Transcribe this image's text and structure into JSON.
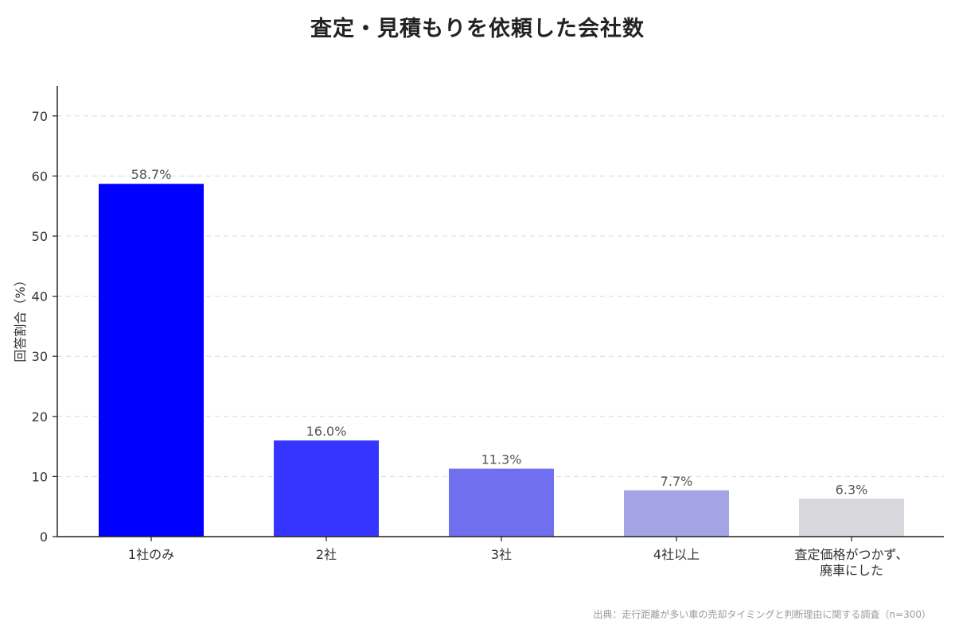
{
  "chart_data": {
    "type": "bar",
    "title": "査定・見積もりを依頼した会社数",
    "ylabel": "回答割合（%）",
    "xlabel": "",
    "ylim": [
      0,
      75
    ],
    "yticks": [
      0,
      10,
      20,
      30,
      40,
      50,
      60,
      70
    ],
    "grid": true,
    "categories": [
      [
        "1社のみ"
      ],
      [
        "2社"
      ],
      [
        "3社"
      ],
      [
        "4社以上"
      ],
      [
        "査定価格がつかず、",
        "廃車にした"
      ]
    ],
    "values": [
      58.7,
      16.0,
      11.3,
      7.7,
      6.3
    ],
    "data_labels": [
      "58.7%",
      "16.0%",
      "11.3%",
      "7.7%",
      "6.3%"
    ],
    "colors": [
      "#0000ff",
      "#3535ff",
      "#6f6ff0",
      "#a3a3e6",
      "#d8d8dc"
    ],
    "source": "出典：走行距離が多い車の売却タイミングと判断理由に関する調査（n=300）"
  }
}
